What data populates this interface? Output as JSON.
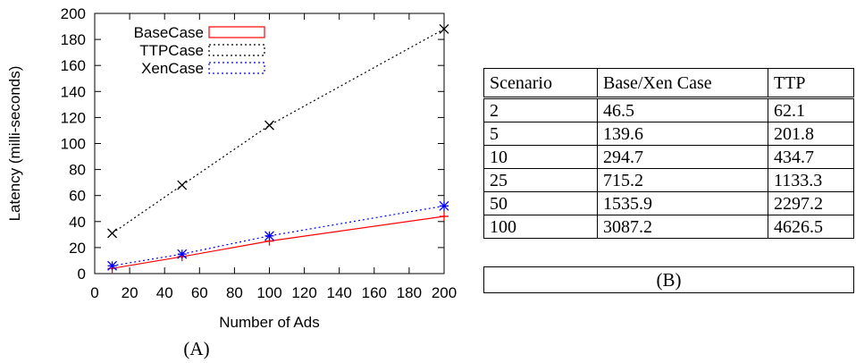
{
  "chart_data": {
    "type": "line",
    "xlabel": "Number of Ads",
    "ylabel": "Latency (milli-seconds)",
    "xlim": [
      0,
      200
    ],
    "ylim": [
      0,
      200
    ],
    "xticks": [
      0,
      20,
      40,
      60,
      80,
      100,
      120,
      140,
      160,
      180,
      200
    ],
    "yticks": [
      0,
      20,
      40,
      60,
      80,
      100,
      120,
      140,
      160,
      180,
      200
    ],
    "grid": false,
    "legend_position": "top-left",
    "series": [
      {
        "name": "BaseCase",
        "color": "#ff0000",
        "line_style": "solid",
        "marker": "plus",
        "x": [
          10,
          50,
          100,
          200
        ],
        "y": [
          4,
          13,
          25,
          44
        ]
      },
      {
        "name": "TTPCase",
        "color": "#000000",
        "line_style": "dotted",
        "marker": "cross",
        "x": [
          10,
          50,
          100,
          200
        ],
        "y": [
          31,
          68,
          114,
          188
        ]
      },
      {
        "name": "XenCase",
        "color": "#0000ff",
        "line_style": "dotted",
        "marker": "star",
        "x": [
          10,
          50,
          100,
          200
        ],
        "y": [
          6,
          15,
          29,
          52
        ]
      }
    ]
  },
  "caption_a": "(A)",
  "caption_b": "(B)",
  "table": {
    "headers": [
      "Scenario",
      "Base/Xen Case",
      "TTP"
    ],
    "rows": [
      [
        "2",
        "46.5",
        "62.1"
      ],
      [
        "5",
        "139.6",
        "201.8"
      ],
      [
        "10",
        "294.7",
        "434.7"
      ],
      [
        "25",
        "715.2",
        "1133.3"
      ],
      [
        "50",
        "1535.9",
        "2297.2"
      ],
      [
        "100",
        "3087.2",
        "4626.5"
      ]
    ]
  }
}
